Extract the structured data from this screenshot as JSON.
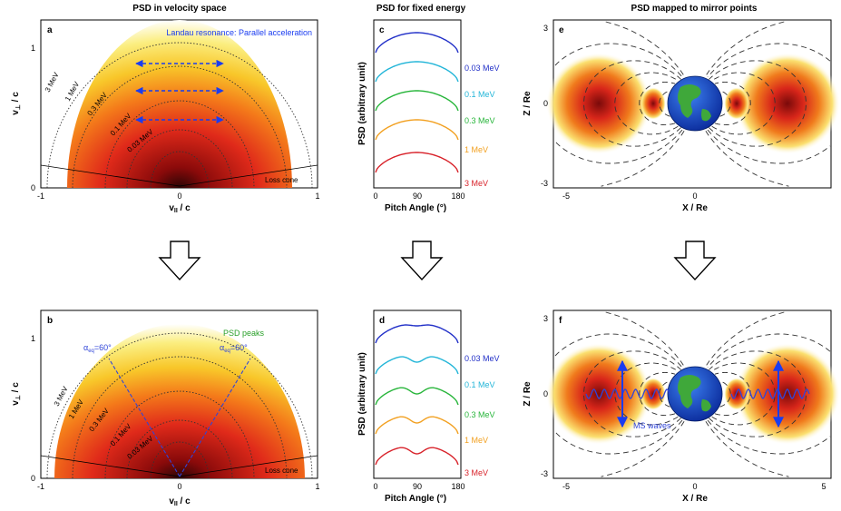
{
  "titles": {
    "velocity": "PSD in velocity space",
    "fixed_energy": "PSD for fixed energy",
    "mirror": "PSD mapped to mirror points"
  },
  "panel_letters": [
    "a",
    "b",
    "c",
    "d",
    "e",
    "f"
  ],
  "velocity_panels": {
    "xlabel": "v",
    "xlabel_sub": "II",
    "xlabel_suffix": " / c",
    "ylabel": "v",
    "ylabel_sub": "⊥",
    "ylabel_suffix": " / c",
    "x_ticks": [
      "-1",
      "0",
      "1"
    ],
    "y_ticks": [
      "0",
      "1"
    ],
    "energy_labels": [
      "3 MeV",
      "1 MeV",
      "0.3 MeV",
      "0.1 MeV",
      "0.03 MeV"
    ],
    "loss_cone": "Loss cone",
    "landau": "Landau resonance:  Parallel acceleration",
    "psd_peaks": "PSD peaks",
    "alpha": "α",
    "alpha_sub": "eq",
    "alpha_value": "=60°"
  },
  "pitch_panels": {
    "ylabel": "PSD (arbitrary unit)",
    "xlabel": "Pitch Angle  (°)",
    "x_ticks": [
      "0",
      "90",
      "180"
    ],
    "energies": [
      "0.03 MeV",
      "0.1 MeV",
      "0.3 MeV",
      "1 MeV",
      "3 MeV"
    ],
    "colors": [
      "#2230c8",
      "#22b5d8",
      "#27b53a",
      "#f2a020",
      "#d8222a"
    ]
  },
  "mirror_panels": {
    "xlabel": "X / Re",
    "ylabel": "Z / Re",
    "x_ticks_e": [
      "-5",
      "0"
    ],
    "x_ticks_f": [
      "-5",
      "0",
      "5"
    ],
    "y_ticks": [
      "3",
      "0",
      "-3"
    ],
    "ms_waves": "MS waves"
  },
  "colors": {
    "wave_blue": "#3045d8",
    "green_label": "#2aa02a",
    "arrow_blue": "#1a3cf0"
  }
}
